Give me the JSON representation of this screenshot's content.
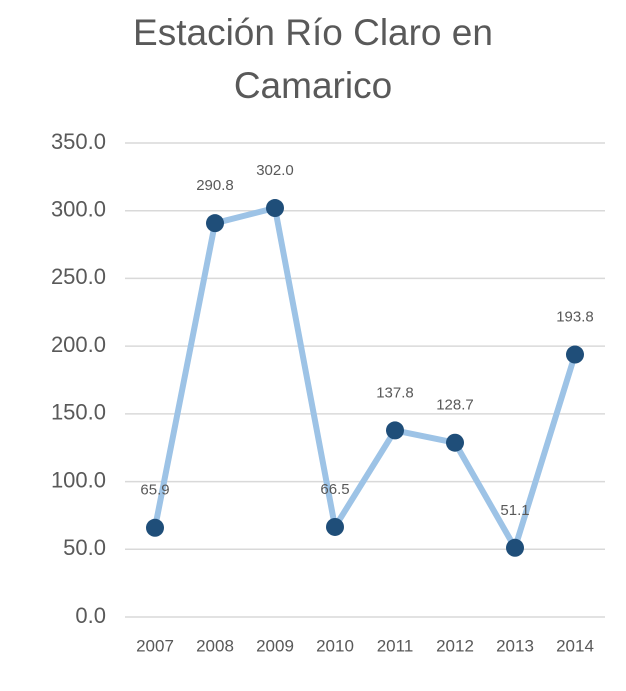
{
  "chart_data": {
    "type": "line",
    "title": "Estación Río Claro en Camarico",
    "categories": [
      "2007",
      "2008",
      "2009",
      "2010",
      "2011",
      "2012",
      "2013",
      "2014"
    ],
    "series": [
      {
        "name": "Estación Río Claro en Camarico",
        "color": "#9dc3e6",
        "marker_color": "#1f4e79",
        "values": [
          65.9,
          290.8,
          302.0,
          66.5,
          137.8,
          128.7,
          51.1,
          193.8
        ],
        "value_labels": [
          "65.9",
          "290.8",
          "302.0",
          "66.5",
          "137.8",
          "128.7",
          "51.1",
          "193.8"
        ]
      }
    ],
    "ylim": [
      0,
      350
    ],
    "yticks": [
      {
        "value": 0,
        "label": "0.0"
      },
      {
        "value": 50,
        "label": "50.0"
      },
      {
        "value": 100,
        "label": "100.0"
      },
      {
        "value": 150,
        "label": "150.0"
      },
      {
        "value": 200,
        "label": "200.0"
      },
      {
        "value": 250,
        "label": "250.0"
      },
      {
        "value": 300,
        "label": "300.0"
      },
      {
        "value": 350,
        "label": "350.0"
      }
    ],
    "grid": true
  }
}
